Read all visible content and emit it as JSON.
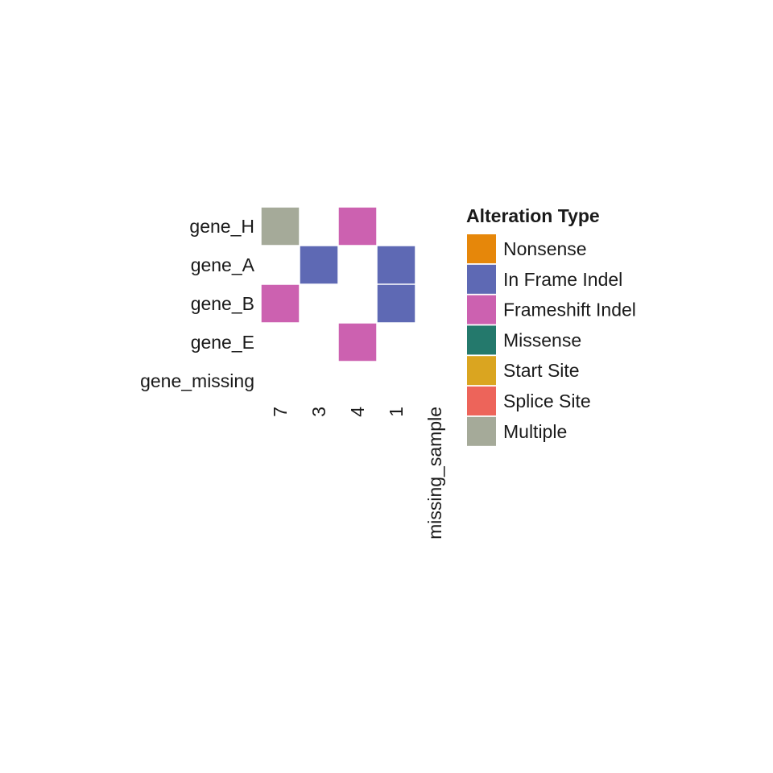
{
  "chart_data": {
    "type": "heatmap",
    "genes": [
      "gene_H",
      "gene_A",
      "gene_B",
      "gene_E",
      "gene_missing"
    ],
    "samples": [
      "7",
      "3",
      "4",
      "1",
      "missing_sample"
    ],
    "cells": [
      {
        "gene": "gene_H",
        "sample": "7",
        "alteration": "Multiple"
      },
      {
        "gene": "gene_H",
        "sample": "4",
        "alteration": "Frameshift Indel"
      },
      {
        "gene": "gene_A",
        "sample": "3",
        "alteration": "In Frame Indel"
      },
      {
        "gene": "gene_A",
        "sample": "1",
        "alteration": "In Frame Indel"
      },
      {
        "gene": "gene_B",
        "sample": "7",
        "alteration": "Frameshift Indel"
      },
      {
        "gene": "gene_B",
        "sample": "1",
        "alteration": "In Frame Indel"
      },
      {
        "gene": "gene_E",
        "sample": "4",
        "alteration": "Frameshift Indel"
      }
    ],
    "legend": {
      "title": "Alteration Type",
      "placement": "right",
      "entries": [
        {
          "label": "Nonsense",
          "color": "#E6870A"
        },
        {
          "label": "In Frame Indel",
          "color": "#5E69B4"
        },
        {
          "label": "Frameshift Indel",
          "color": "#CC61B0"
        },
        {
          "label": "Missense",
          "color": "#24796C"
        },
        {
          "label": "Start Site",
          "color": "#DAA520"
        },
        {
          "label": "Splice Site",
          "color": "#ED645A"
        },
        {
          "label": "Multiple",
          "color": "#A5AA99"
        }
      ]
    },
    "grid": false
  }
}
